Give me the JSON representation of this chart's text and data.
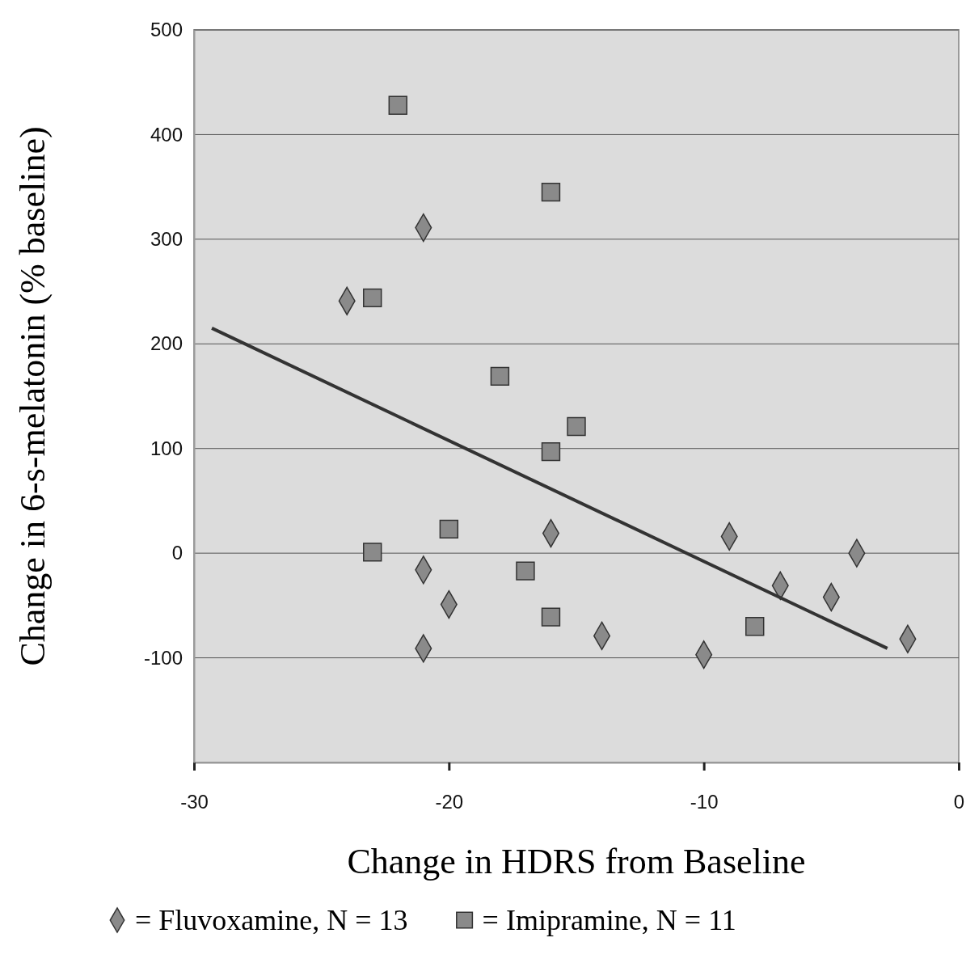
{
  "chart_data": {
    "type": "scatter",
    "xlabel": "Change in HDRS from Baseline",
    "ylabel": "Change in 6-s-melatonin (% baseline)",
    "xlim": [
      -30,
      0
    ],
    "xticks": [
      -30,
      -20,
      -10,
      0
    ],
    "ylim": [
      -200,
      500
    ],
    "yticks": [
      -100,
      0,
      100,
      200,
      300,
      400,
      500
    ],
    "grid": "y",
    "legend": "bottom",
    "series": [
      {
        "name": "= Fluvoxamine, N = 13",
        "color": "#8a8a8a",
        "marker": "diamond",
        "x": [
          -24,
          -21,
          -21,
          -20,
          -21,
          -16,
          -14,
          -10,
          -9,
          -7,
          -5,
          -4,
          -2
        ],
        "values": [
          241,
          311,
          -16,
          -49,
          -91,
          19,
          -79,
          -97,
          16,
          -31,
          -42,
          0,
          -82
        ]
      },
      {
        "name": "= Imipramine, N = 11",
        "color": "#8a8a8a",
        "marker": "square",
        "x": [
          -22,
          -16,
          -23,
          -18,
          -15,
          -16,
          -20,
          -23,
          -17,
          -16,
          -8
        ],
        "values": [
          428,
          345,
          244,
          169,
          121,
          97,
          23,
          1,
          -17,
          -61,
          -70
        ]
      },
      {
        "type": "line",
        "color": "#333333",
        "marker": "none",
        "x": [
          -29.3,
          -2.8
        ],
        "values": [
          215,
          -91
        ]
      }
    ]
  }
}
